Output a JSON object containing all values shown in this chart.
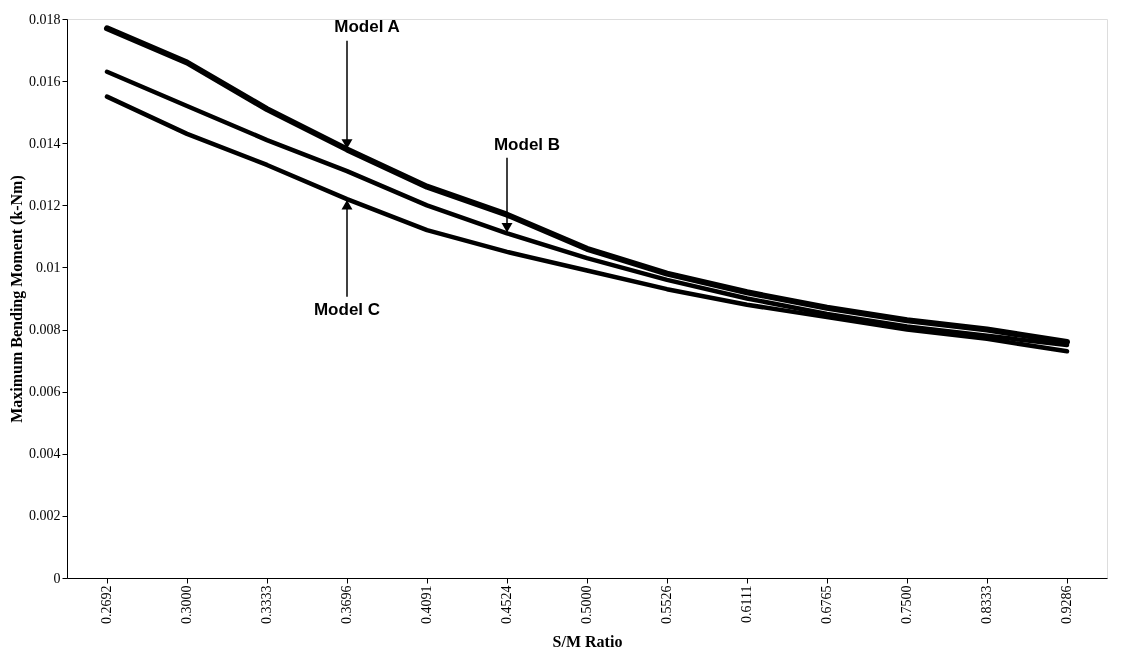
{
  "chart_data": {
    "type": "line",
    "xlabel": "S/M Ratio",
    "ylabel": "Maximum Bending Moment (k-Nm)",
    "categories": [
      "0.2692",
      "0.3000",
      "0.3333",
      "0.3696",
      "0.4091",
      "0.4524",
      "0.5000",
      "0.5526",
      "0.6111",
      "0.6765",
      "0.7500",
      "0.8333",
      "0.9286"
    ],
    "series": [
      {
        "color": "#000000",
        "values": [
          0.0177,
          0.0166,
          0.0151,
          0.0138,
          0.0126,
          0.0117,
          0.0106,
          0.0098,
          0.0092,
          0.0087,
          0.0083,
          0.008,
          0.0076
        ]
      },
      {
        "color": "#000000",
        "values": [
          0.0163,
          0.0152,
          0.0141,
          0.0131,
          0.012,
          0.0111,
          0.0103,
          0.0096,
          0.009,
          0.0085,
          0.0081,
          0.0078,
          0.0075
        ]
      },
      {
        "color": "#000000",
        "values": [
          0.0155,
          0.0143,
          0.0133,
          0.0122,
          0.0112,
          0.0105,
          0.0099,
          0.0093,
          0.0088,
          0.0084,
          0.008,
          0.0077,
          0.0073
        ]
      }
    ],
    "annotations": [
      {
        "text": "Model A",
        "x": "0.3696",
        "y": 0.0138
      },
      {
        "text": "Model B",
        "x": "0.4524",
        "y": 0.0111
      },
      {
        "text": "Model C",
        "x": "0.3696",
        "y": 0.0122
      }
    ],
    "ylim": [
      0,
      0.018
    ],
    "yticks": [
      0,
      0.002,
      0.004,
      0.006,
      0.008,
      0.01,
      0.012,
      0.014,
      0.016,
      0.018
    ],
    "marker": "none",
    "line_style": "solid"
  }
}
